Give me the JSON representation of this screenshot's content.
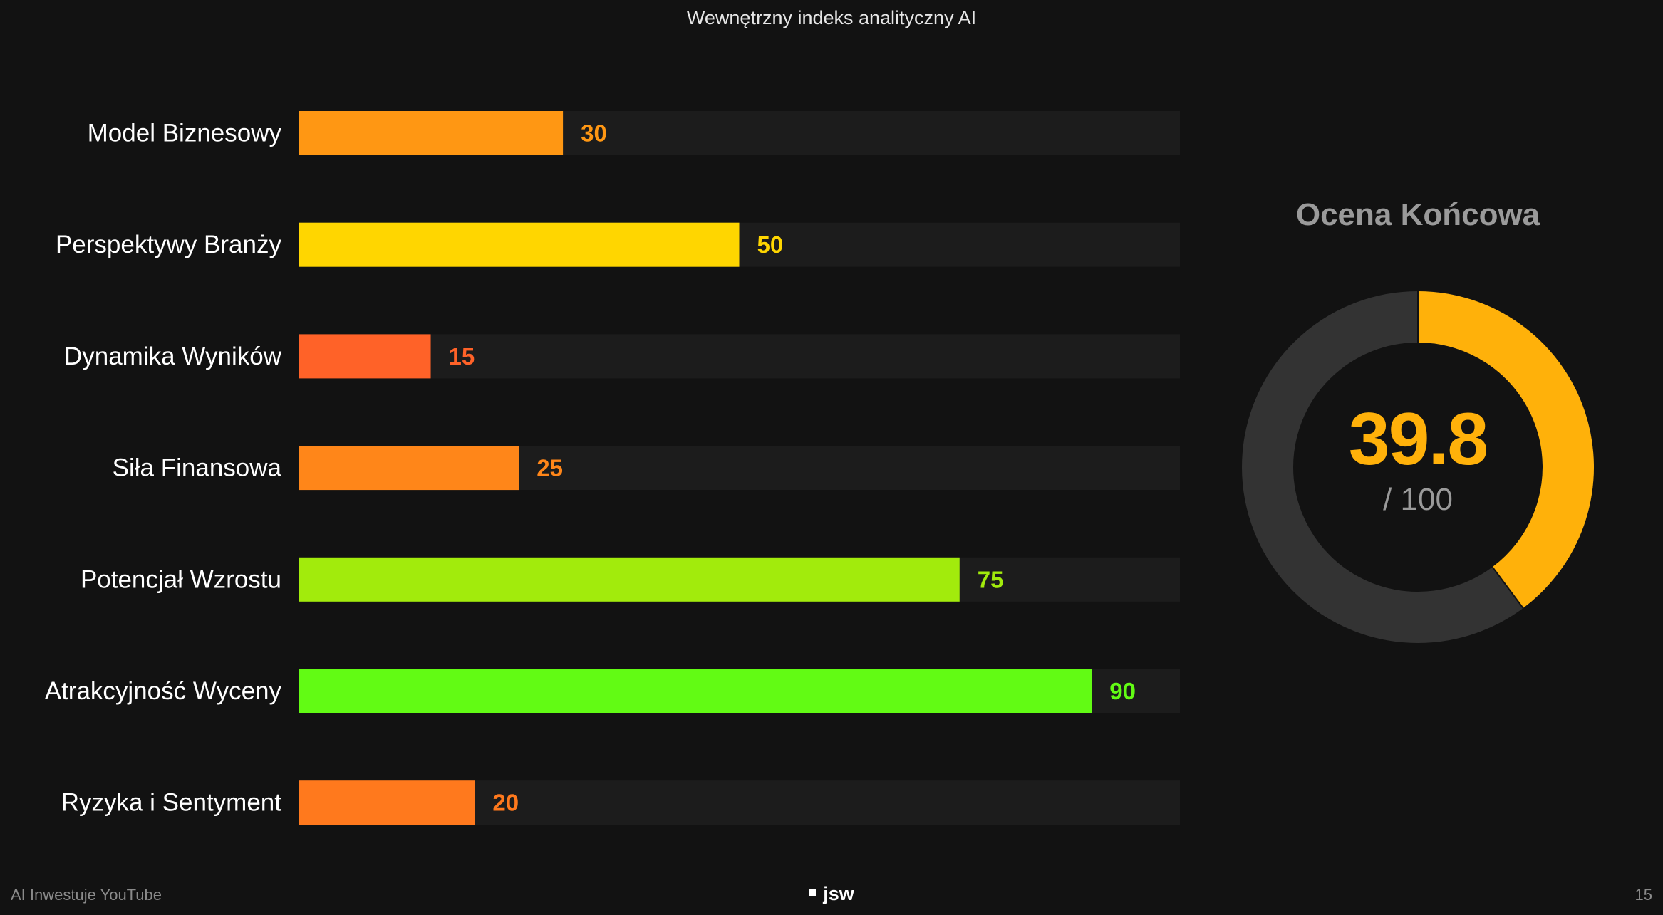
{
  "page": {
    "title": "Wewnętrzny indeks analityczny AI"
  },
  "chart_data": [
    {
      "type": "bar",
      "orientation": "horizontal",
      "categories": [
        "Model Biznesowy",
        "Perspektywy Branży",
        "Dynamika Wyników",
        "Siła Finansowa",
        "Potencjał Wzrostu",
        "Atrakcyjność Wyceny",
        "Ryzyka i Sentyment"
      ],
      "values": [
        30,
        50,
        15,
        25,
        75,
        90,
        20
      ],
      "value_labels": [
        "30",
        "50",
        "15",
        "25",
        "75",
        "90",
        "20"
      ],
      "colors": [
        "#ff9713",
        "#ffd600",
        "#ff6228",
        "#ff8619",
        "#a2eb0c",
        "#62fb14",
        "#ff791d"
      ],
      "xlim": [
        0,
        100
      ],
      "track_color": "#1c1c1c",
      "grid": false,
      "legend": "none"
    },
    {
      "type": "pie",
      "style": "donut",
      "title": "Ocena Końcowa",
      "value": 39.8,
      "max": 100,
      "center_value": "39.8",
      "center_max": "/ 100",
      "colors": {
        "filled": "#ffb10a",
        "remaining": "#333333",
        "title": "#9a9a9a",
        "value_text": "#ffb10a"
      }
    }
  ],
  "footer": {
    "left": "AI Inwestuje YouTube",
    "center": "jsw",
    "page_number": "15"
  }
}
